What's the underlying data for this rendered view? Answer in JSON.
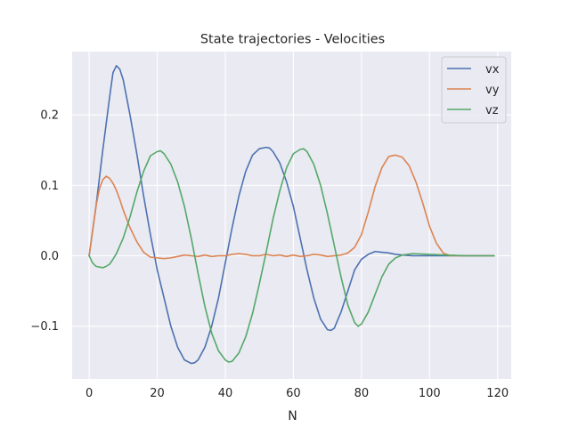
{
  "chart_data": {
    "type": "line",
    "title": "State trajectories - Velocities",
    "xlabel": "N",
    "ylabel": "",
    "xlim": [
      -5,
      124
    ],
    "ylim": [
      -0.175,
      0.29
    ],
    "xticks": [
      0,
      20,
      40,
      60,
      80,
      100,
      120
    ],
    "xtick_labels": [
      "0",
      "20",
      "40",
      "60",
      "80",
      "100",
      "120"
    ],
    "yticks": [
      -0.1,
      0.0,
      0.1,
      0.2
    ],
    "ytick_labels": [
      "−0.1",
      "0.0",
      "0.1",
      "0.2"
    ],
    "grid": true,
    "background": "#eaeaf2",
    "legend_position": "top-right",
    "series": [
      {
        "name": "vx",
        "color": "#4c72b0",
        "x": [
          0,
          2,
          4,
          6,
          7,
          8,
          9,
          10,
          12,
          14,
          16,
          18,
          20,
          22,
          24,
          26,
          28,
          30,
          31,
          32,
          34,
          36,
          38,
          40,
          42,
          44,
          46,
          48,
          50,
          52,
          53,
          54,
          56,
          58,
          60,
          62,
          64,
          66,
          68,
          70,
          71,
          72,
          74,
          76,
          78,
          80,
          82,
          84,
          86,
          88,
          90,
          92,
          95,
          100,
          105,
          110,
          115,
          119
        ],
        "values": [
          0,
          0.07,
          0.15,
          0.225,
          0.26,
          0.27,
          0.265,
          0.25,
          0.2,
          0.145,
          0.085,
          0.03,
          -0.02,
          -0.06,
          -0.1,
          -0.13,
          -0.148,
          -0.153,
          -0.152,
          -0.148,
          -0.13,
          -0.1,
          -0.06,
          -0.01,
          0.04,
          0.085,
          0.12,
          0.143,
          0.152,
          0.154,
          0.153,
          0.148,
          0.132,
          0.105,
          0.07,
          0.025,
          -0.02,
          -0.06,
          -0.09,
          -0.105,
          -0.106,
          -0.103,
          -0.08,
          -0.05,
          -0.02,
          -0.005,
          0.002,
          0.006,
          0.005,
          0.004,
          0.002,
          0.001,
          0,
          0,
          0,
          0,
          0,
          0
        ]
      },
      {
        "name": "vy",
        "color": "#dd8452",
        "x": [
          0,
          1,
          2,
          3,
          4,
          5,
          6,
          7,
          8,
          9,
          10,
          12,
          14,
          16,
          18,
          20,
          22,
          24,
          26,
          28,
          30,
          32,
          34,
          36,
          38,
          40,
          42,
          44,
          46,
          48,
          50,
          52,
          54,
          56,
          58,
          60,
          62,
          64,
          66,
          68,
          70,
          72,
          74,
          76,
          78,
          80,
          82,
          84,
          86,
          88,
          90,
          92,
          94,
          96,
          98,
          100,
          102,
          104,
          106,
          110,
          115,
          119
        ],
        "values": [
          0,
          0.035,
          0.07,
          0.095,
          0.108,
          0.113,
          0.11,
          0.103,
          0.093,
          0.08,
          0.065,
          0.04,
          0.02,
          0.005,
          -0.002,
          -0.003,
          -0.004,
          -0.003,
          -0.001,
          0.001,
          0.0,
          -0.001,
          0.001,
          -0.001,
          0.0,
          0.0,
          0.002,
          0.003,
          0.002,
          0.0,
          0.0,
          0.002,
          0.0,
          0.001,
          -0.001,
          0.001,
          -0.001,
          0.0,
          0.002,
          0.001,
          -0.001,
          0.0,
          0.001,
          0.004,
          0.012,
          0.03,
          0.062,
          0.098,
          0.125,
          0.141,
          0.143,
          0.14,
          0.128,
          0.105,
          0.075,
          0.042,
          0.018,
          0.004,
          0.0,
          0.0,
          0.0,
          0.0
        ]
      },
      {
        "name": "vz",
        "color": "#55a868",
        "x": [
          0,
          1,
          2,
          3,
          4,
          5,
          6,
          7,
          8,
          10,
          12,
          14,
          16,
          18,
          20,
          21,
          22,
          24,
          26,
          28,
          30,
          32,
          34,
          36,
          38,
          40,
          41,
          42,
          44,
          46,
          48,
          50,
          52,
          54,
          56,
          58,
          60,
          62,
          63,
          64,
          66,
          68,
          70,
          72,
          74,
          76,
          78,
          79,
          80,
          82,
          84,
          86,
          88,
          90,
          92,
          95,
          100,
          105,
          110,
          115,
          119
        ],
        "values": [
          0,
          -0.01,
          -0.015,
          -0.016,
          -0.017,
          -0.015,
          -0.012,
          -0.005,
          0.003,
          0.025,
          0.055,
          0.09,
          0.12,
          0.142,
          0.148,
          0.149,
          0.145,
          0.13,
          0.105,
          0.07,
          0.025,
          -0.025,
          -0.072,
          -0.11,
          -0.135,
          -0.148,
          -0.151,
          -0.15,
          -0.138,
          -0.115,
          -0.082,
          -0.04,
          0.005,
          0.052,
          0.092,
          0.125,
          0.145,
          0.151,
          0.152,
          0.148,
          0.13,
          0.1,
          0.06,
          0.015,
          -0.03,
          -0.07,
          -0.095,
          -0.1,
          -0.097,
          -0.08,
          -0.055,
          -0.03,
          -0.012,
          -0.003,
          0.001,
          0.003,
          0.002,
          0.001,
          0,
          0,
          0
        ]
      }
    ]
  }
}
